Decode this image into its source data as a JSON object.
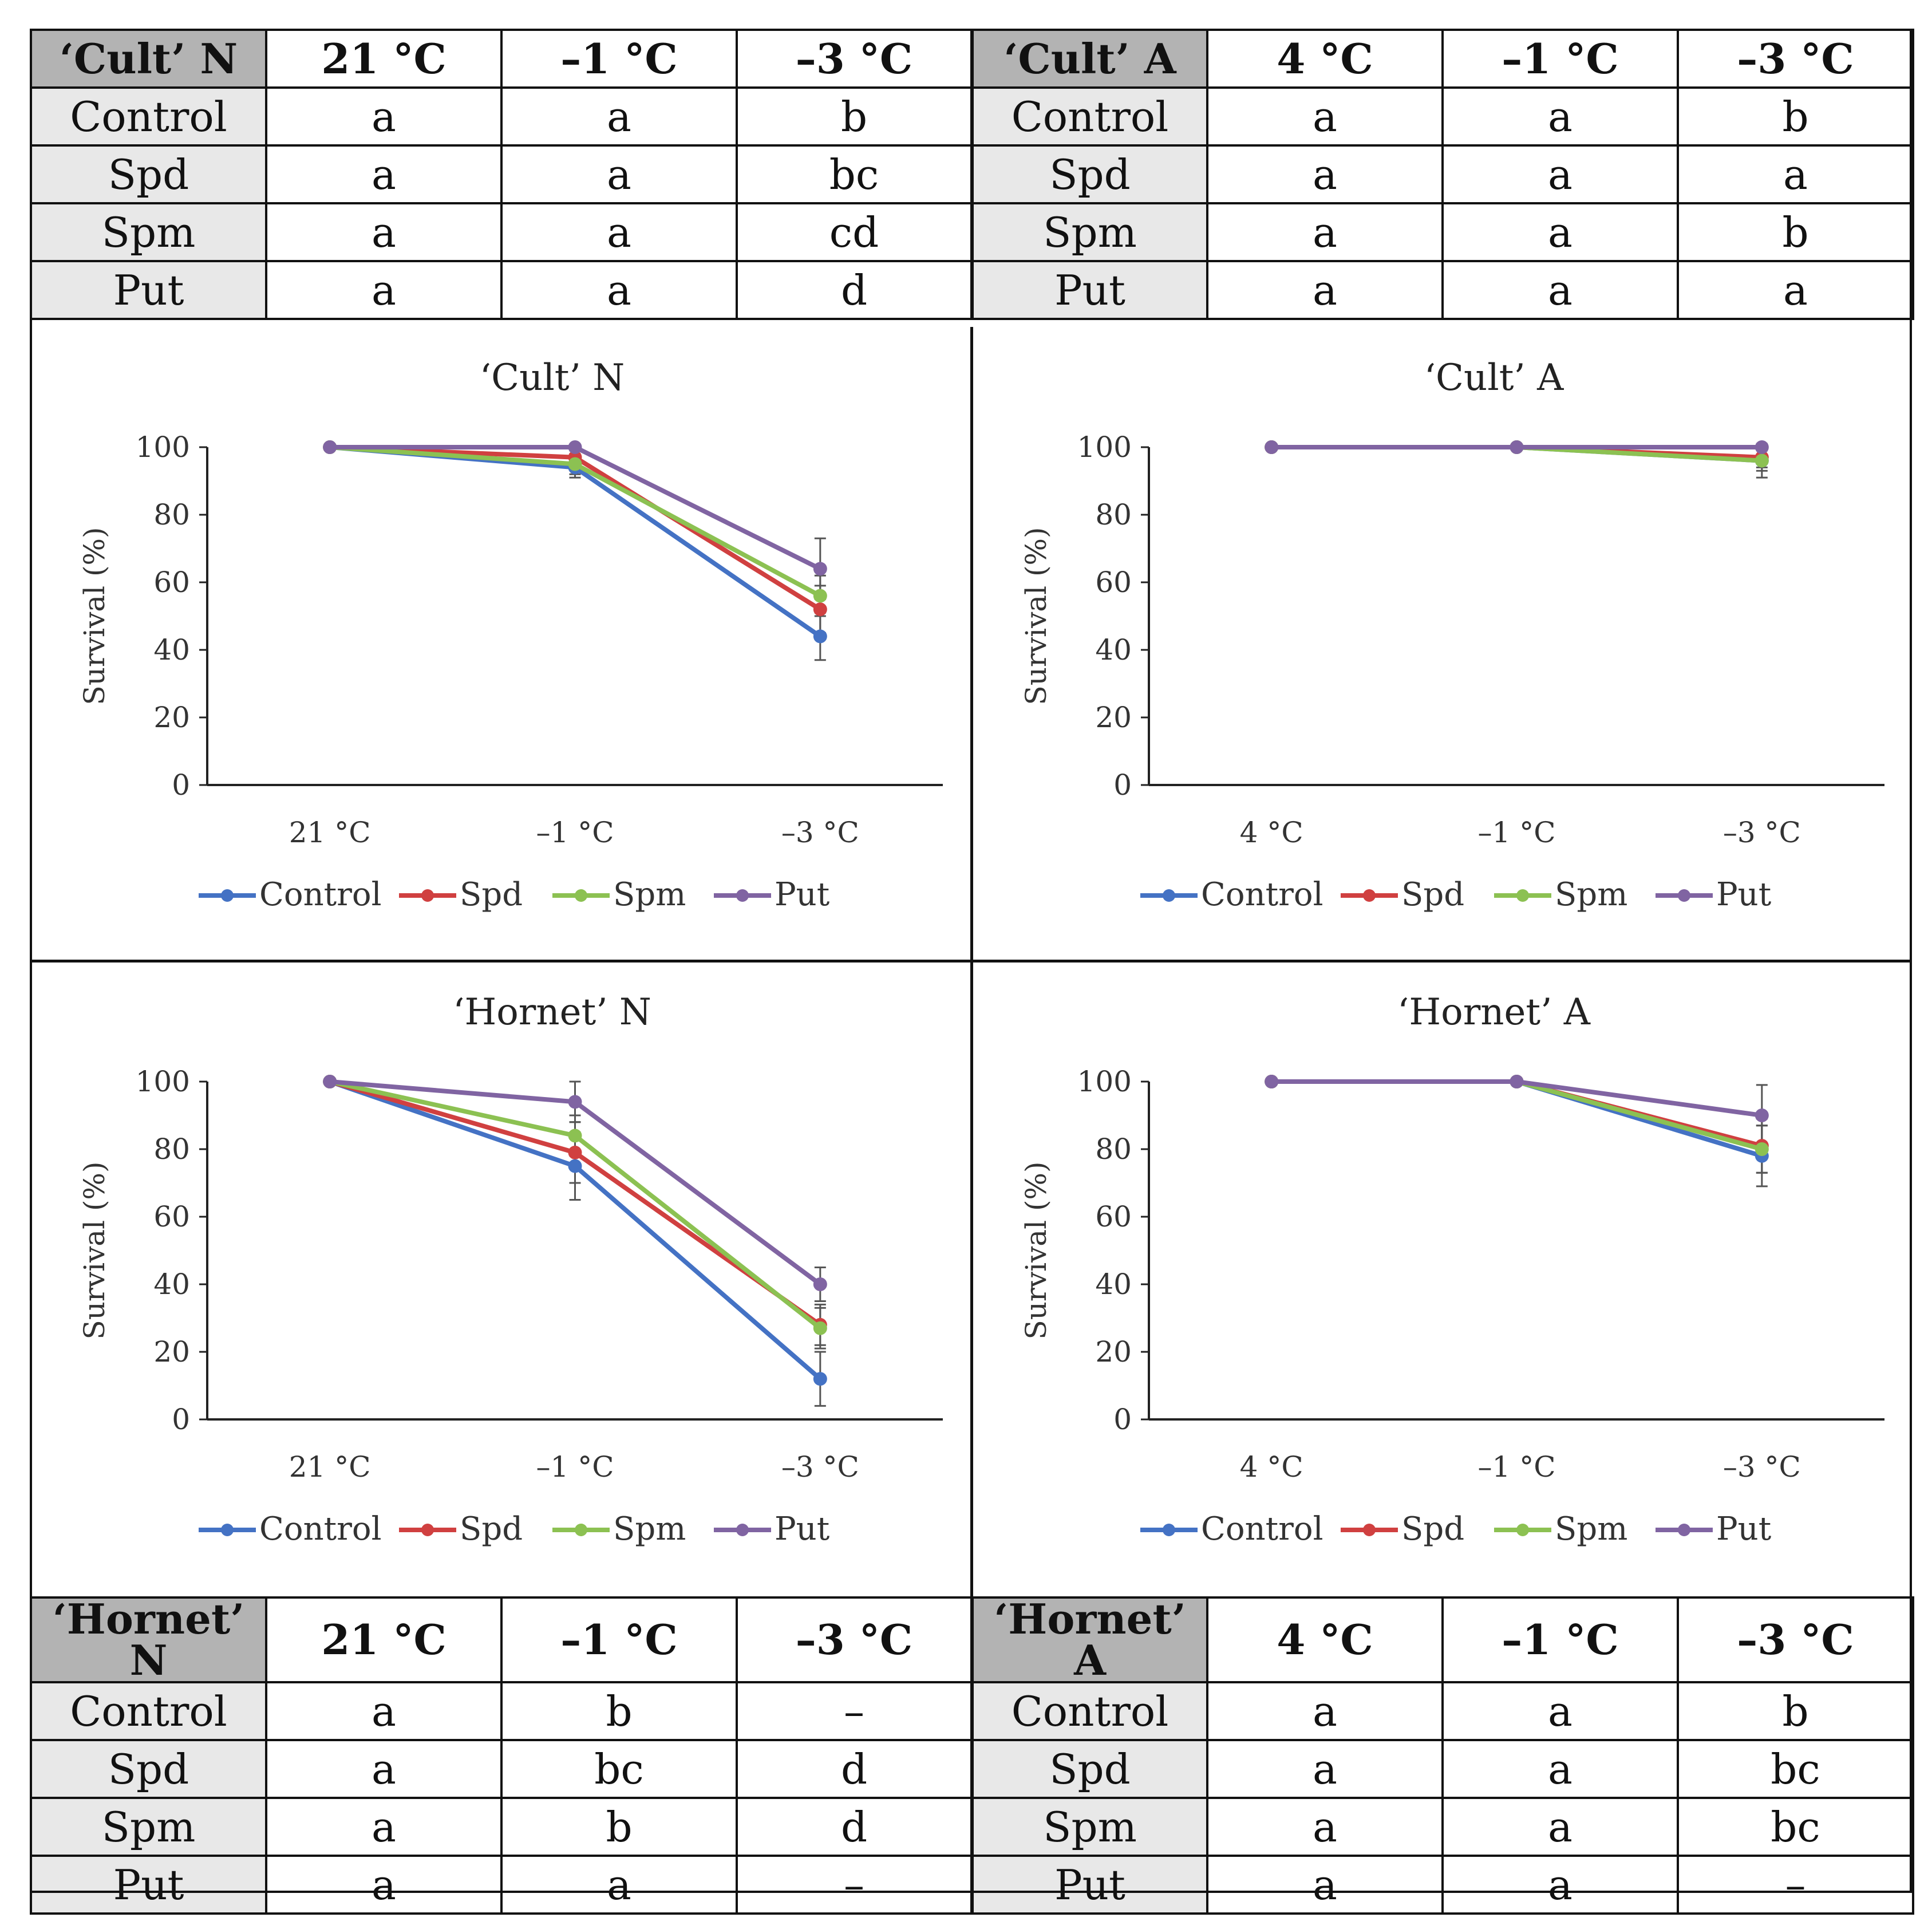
{
  "tables": {
    "top": {
      "left": {
        "header": [
          "‘Cult’ N",
          "21 °C",
          "–1 °C",
          "–3 °C"
        ],
        "rows": [
          [
            "Control",
            "a",
            "a",
            "b"
          ],
          [
            "Spd",
            "a",
            "a",
            "bc"
          ],
          [
            "Spm",
            "a",
            "a",
            "cd"
          ],
          [
            "Put",
            "a",
            "a",
            "d"
          ]
        ]
      },
      "right": {
        "header": [
          "‘Cult’ A",
          "4 °C",
          "–1 °C",
          "–3 °C"
        ],
        "rows": [
          [
            "Control",
            "a",
            "a",
            "b"
          ],
          [
            "Spd",
            "a",
            "a",
            "a"
          ],
          [
            "Spm",
            "a",
            "a",
            "b"
          ],
          [
            "Put",
            "a",
            "a",
            "a"
          ]
        ]
      }
    },
    "bottom": {
      "left": {
        "header": [
          "‘Hornet’ N",
          "21 °C",
          "–1 °C",
          "–3 °C"
        ],
        "rows": [
          [
            "Control",
            "a",
            "b",
            "–"
          ],
          [
            "Spd",
            "a",
            "bc",
            "d"
          ],
          [
            "Spm",
            "a",
            "b",
            "d"
          ],
          [
            "Put",
            "a",
            "a",
            "–"
          ]
        ]
      },
      "right": {
        "header": [
          "‘Hornet’ A",
          "4 °C",
          "–1 °C",
          "–3 °C"
        ],
        "rows": [
          [
            "Control",
            "a",
            "a",
            "b"
          ],
          [
            "Spd",
            "a",
            "a",
            "bc"
          ],
          [
            "Spm",
            "a",
            "a",
            "bc"
          ],
          [
            "Put",
            "a",
            "a",
            "–"
          ]
        ]
      }
    }
  },
  "colors": {
    "Control": "#4472c4",
    "Spd": "#d04040",
    "Spm": "#8cc152",
    "Put": "#8064a2",
    "axis": "#222222",
    "errorbar": "#555555"
  },
  "chart_data": [
    {
      "type": "line",
      "title": "‘Cult’ N",
      "ylabel": "Survival (%)",
      "categories": [
        "21 °C",
        "–1 °C",
        "–3 °C"
      ],
      "yticks": [
        "0",
        "20",
        "40",
        "60",
        "80",
        "100"
      ],
      "ylim": [
        0,
        100
      ],
      "series": [
        {
          "name": "Control",
          "values": [
            100,
            94,
            44
          ],
          "errors": [
            0,
            3,
            7
          ]
        },
        {
          "name": "Spd",
          "values": [
            100,
            97,
            52
          ],
          "errors": [
            0,
            2,
            7
          ]
        },
        {
          "name": "Spm",
          "values": [
            100,
            95,
            56
          ],
          "errors": [
            0,
            3,
            6
          ]
        },
        {
          "name": "Put",
          "values": [
            100,
            100,
            64
          ],
          "errors": [
            0,
            0,
            9
          ]
        }
      ]
    },
    {
      "type": "line",
      "title": "‘Cult’ A",
      "ylabel": "Survival (%)",
      "categories": [
        "4 °C",
        "–1 °C",
        "–3 °C"
      ],
      "yticks": [
        "0",
        "20",
        "40",
        "60",
        "80",
        "100"
      ],
      "ylim": [
        0,
        100
      ],
      "series": [
        {
          "name": "Control",
          "values": [
            100,
            100,
            96
          ],
          "errors": [
            0,
            0,
            3
          ]
        },
        {
          "name": "Spd",
          "values": [
            100,
            100,
            97
          ],
          "errors": [
            0,
            0,
            3
          ]
        },
        {
          "name": "Spm",
          "values": [
            100,
            100,
            96
          ],
          "errors": [
            0,
            0,
            5
          ]
        },
        {
          "name": "Put",
          "values": [
            100,
            100,
            100
          ],
          "errors": [
            0,
            0,
            0
          ]
        }
      ]
    },
    {
      "type": "line",
      "title": "‘Hornet’ N",
      "ylabel": "Survival (%)",
      "categories": [
        "21 °C",
        "–1 °C",
        "–3 °C"
      ],
      "yticks": [
        "0",
        "20",
        "40",
        "60",
        "80",
        "100"
      ],
      "ylim": [
        0,
        100
      ],
      "series": [
        {
          "name": "Control",
          "values": [
            100,
            75,
            12
          ],
          "errors": [
            0,
            10,
            8
          ]
        },
        {
          "name": "Spd",
          "values": [
            100,
            79,
            28
          ],
          "errors": [
            0,
            9,
            6
          ]
        },
        {
          "name": "Spm",
          "values": [
            100,
            84,
            27
          ],
          "errors": [
            0,
            6,
            6
          ]
        },
        {
          "name": "Put",
          "values": [
            100,
            94,
            40
          ],
          "errors": [
            0,
            6,
            5
          ]
        }
      ]
    },
    {
      "type": "line",
      "title": "‘Hornet’ A",
      "ylabel": "Survival (%)",
      "categories": [
        "4 °C",
        "–1 °C",
        "–3 °C"
      ],
      "yticks": [
        "0",
        "20",
        "40",
        "60",
        "80",
        "100"
      ],
      "ylim": [
        0,
        100
      ],
      "series": [
        {
          "name": "Control",
          "values": [
            100,
            100,
            78
          ],
          "errors": [
            0,
            0,
            9
          ]
        },
        {
          "name": "Spd",
          "values": [
            100,
            100,
            81
          ],
          "errors": [
            0,
            0,
            8
          ]
        },
        {
          "name": "Spm",
          "values": [
            100,
            100,
            80
          ],
          "errors": [
            0,
            0,
            7
          ]
        },
        {
          "name": "Put",
          "values": [
            100,
            100,
            90
          ],
          "errors": [
            0,
            0,
            9
          ]
        }
      ]
    }
  ]
}
